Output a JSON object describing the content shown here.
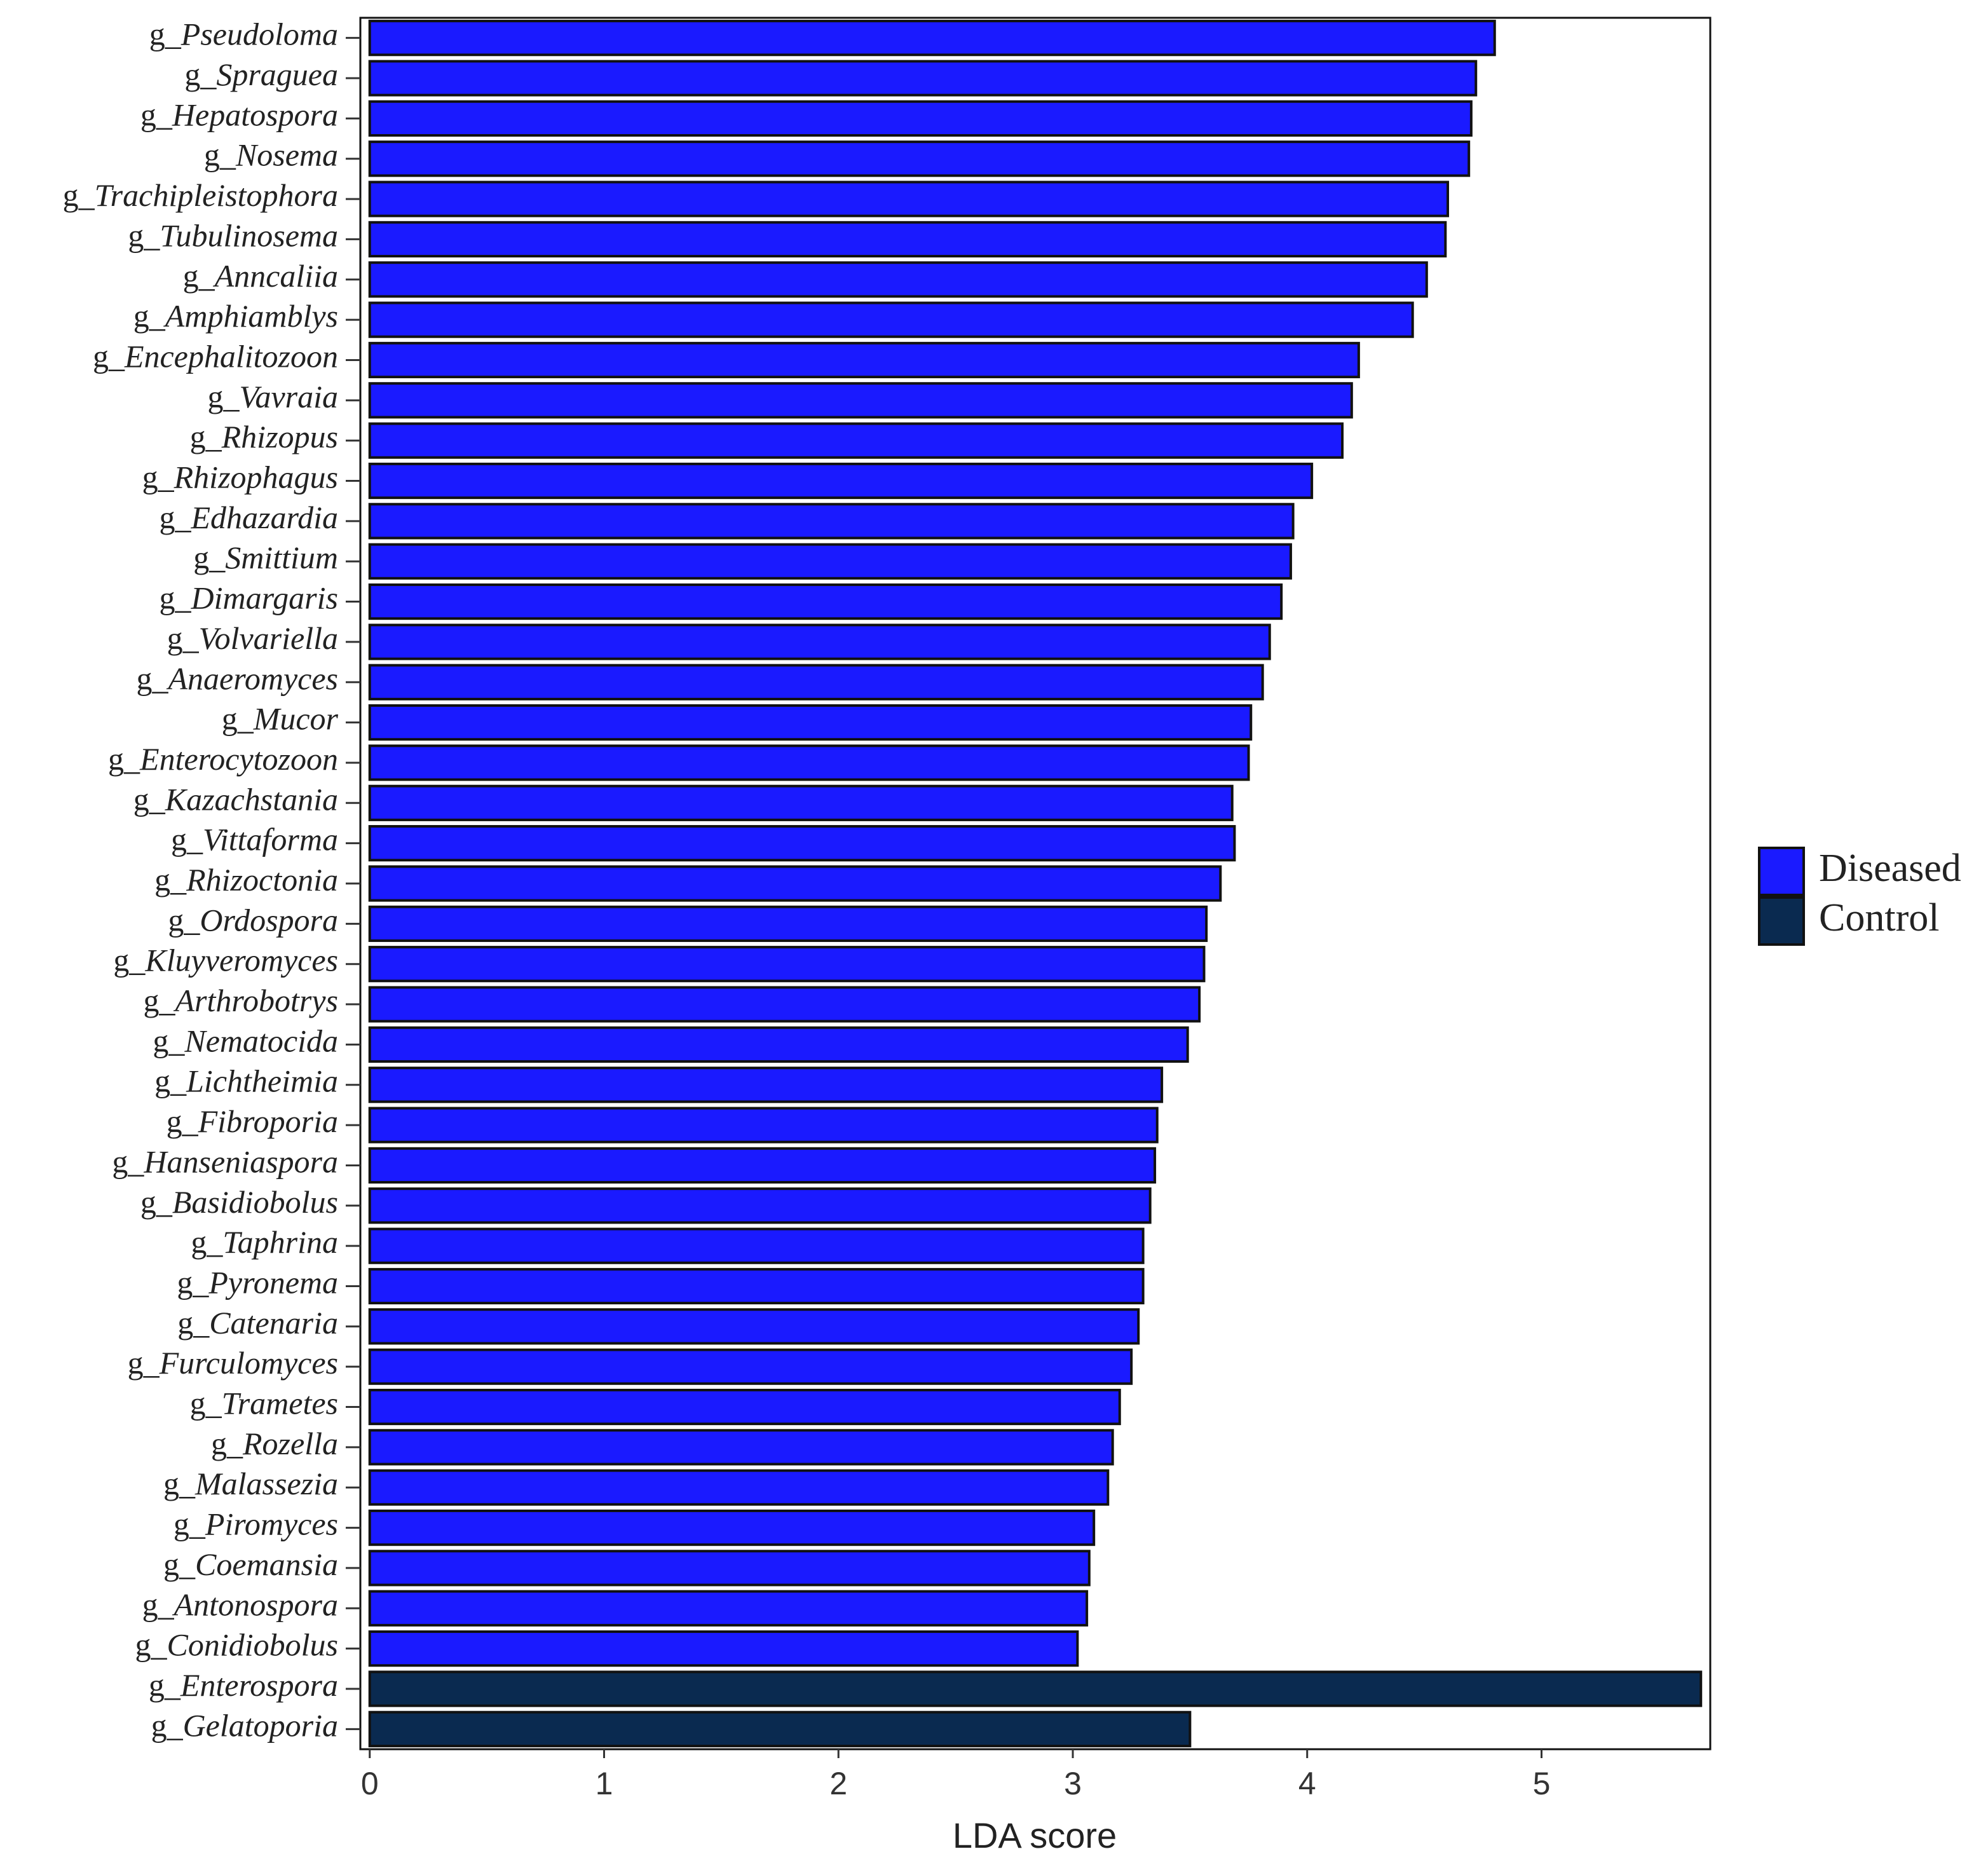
{
  "chart_data": {
    "type": "barh",
    "xlabel": "LDA score",
    "categories": [
      "g_Pseudoloma",
      "g_Spraguea",
      "g_Hepatospora",
      "g_Nosema",
      "g_Trachipleistophora",
      "g_Tubulinosema",
      "g_Anncaliia",
      "g_Amphiamblys",
      "g_Encephalitozoon",
      "g_Vavraia",
      "g_Rhizopus",
      "g_Rhizophagus",
      "g_Edhazardia",
      "g_Smittium",
      "g_Dimargaris",
      "g_Volvariella",
      "g_Anaeromyces",
      "g_Mucor",
      "g_Enterocytozoon",
      "g_Kazachstania",
      "g_Vittaforma",
      "g_Rhizoctonia",
      "g_Ordospora",
      "g_Kluyveromyces",
      "g_Arthrobotrys",
      "g_Nematocida",
      "g_Lichtheimia",
      "g_Fibroporia",
      "g_Hanseniaspora",
      "g_Basidiobolus",
      "g_Taphrina",
      "g_Pyronema",
      "g_Catenaria",
      "g_Furculomyces",
      "g_Trametes",
      "g_Rozella",
      "g_Malassezia",
      "g_Piromyces",
      "g_Coemansia",
      "g_Antonospora",
      "g_Conidiobolus",
      "g_Enterospora",
      "g_Gelatoporia"
    ],
    "series": [
      {
        "name": "Diseased",
        "color": "#1a1aff",
        "values": [
          4.8,
          4.72,
          4.7,
          4.69,
          4.6,
          4.59,
          4.51,
          4.45,
          4.22,
          4.19,
          4.15,
          4.02,
          3.94,
          3.93,
          3.89,
          3.84,
          3.81,
          3.76,
          3.75,
          3.68,
          3.69,
          3.63,
          3.57,
          3.56,
          3.54,
          3.49,
          3.38,
          3.36,
          3.35,
          3.33,
          3.3,
          3.3,
          3.28,
          3.25,
          3.2,
          3.17,
          3.15,
          3.09,
          3.07,
          3.06,
          3.02,
          null,
          null
        ]
      },
      {
        "name": "Control",
        "color": "#0a2a50",
        "values": [
          null,
          null,
          null,
          null,
          null,
          null,
          null,
          null,
          null,
          null,
          null,
          null,
          null,
          null,
          null,
          null,
          null,
          null,
          null,
          null,
          null,
          null,
          null,
          null,
          null,
          null,
          null,
          null,
          null,
          null,
          null,
          null,
          null,
          null,
          null,
          null,
          null,
          null,
          null,
          null,
          null,
          5.68,
          3.5
        ]
      }
    ],
    "xlim": [
      -0.04,
      5.72
    ],
    "xticks": [
      0,
      1,
      2,
      3,
      4,
      5
    ],
    "legend": "right"
  }
}
